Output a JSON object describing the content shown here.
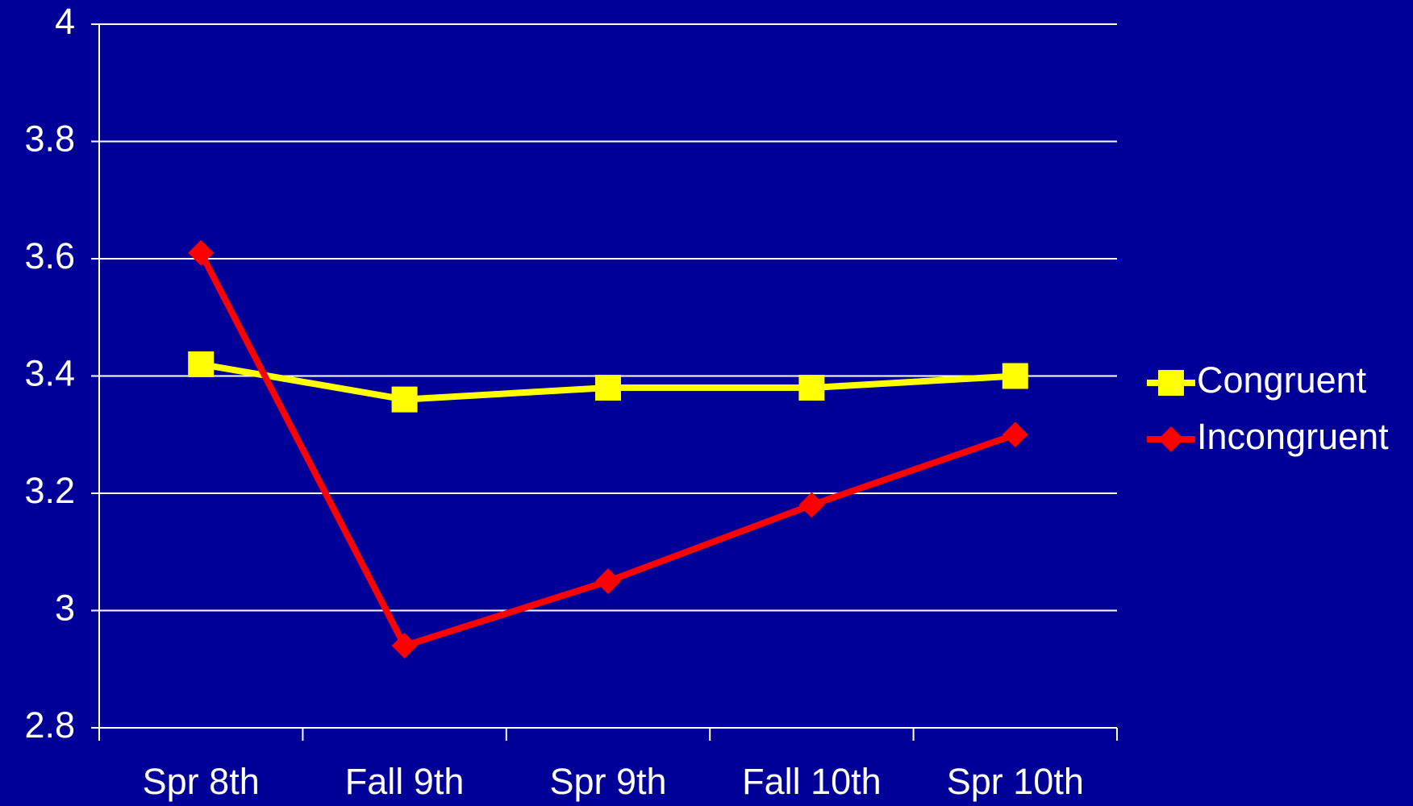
{
  "chart_data": {
    "type": "line",
    "categories": [
      "Spr 8th",
      "Fall 9th",
      "Spr 9th",
      "Fall 10th",
      "Spr 10th"
    ],
    "series": [
      {
        "name": "Congruent",
        "color": "#ffff00",
        "marker": "square",
        "values": [
          3.42,
          3.36,
          3.38,
          3.38,
          3.4
        ]
      },
      {
        "name": "Incongruent",
        "color": "#ff0000",
        "marker": "diamond",
        "values": [
          3.61,
          2.94,
          3.05,
          3.18,
          3.3
        ]
      }
    ],
    "ylim": [
      2.8,
      4
    ],
    "yticks": [
      2.8,
      3,
      3.2,
      3.4,
      3.6,
      3.8,
      4
    ],
    "grid": true,
    "legend": "right"
  }
}
